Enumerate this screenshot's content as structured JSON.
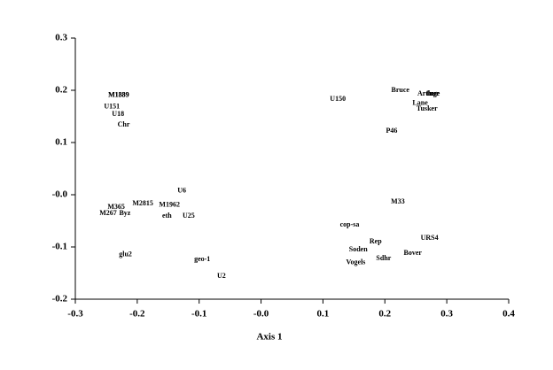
{
  "chart_data": {
    "type": "scatter",
    "x_label": "Axis 1",
    "xlim": [
      -0.3,
      0.4
    ],
    "ylim": [
      -0.2,
      0.3
    ],
    "xticks": [
      -0.3,
      -0.2,
      -0.1,
      {
        "value": 0,
        "label": "-0.0"
      },
      0.1,
      0.2,
      0.3,
      0.4
    ],
    "yticks": [
      -0.2,
      -0.1,
      {
        "value": 0,
        "label": "-0.0"
      },
      0.1,
      0.2,
      0.3
    ],
    "color": "#000000",
    "points": [
      {
        "label": "M1339",
        "x": -0.23,
        "y": 0.19
      },
      {
        "label": "M1889",
        "x": -0.23,
        "y": 0.19
      },
      {
        "label": "U151",
        "x": -0.241,
        "y": 0.168
      },
      {
        "label": "U18",
        "x": -0.231,
        "y": 0.154
      },
      {
        "label": "Chr",
        "x": -0.222,
        "y": 0.134
      },
      {
        "label": "U150",
        "x": 0.124,
        "y": 0.183
      },
      {
        "label": "Bruce",
        "x": 0.225,
        "y": 0.2
      },
      {
        "label": "Arthur",
        "x": 0.27,
        "y": 0.193
      },
      {
        "label": "Inge",
        "x": 0.278,
        "y": 0.193
      },
      {
        "label": "Lane",
        "x": 0.257,
        "y": 0.175
      },
      {
        "label": "Tusker",
        "x": 0.268,
        "y": 0.164
      },
      {
        "label": "P46",
        "x": 0.211,
        "y": 0.122
      },
      {
        "label": "U6",
        "x": -0.128,
        "y": 0.007
      },
      {
        "label": "M2815",
        "x": -0.191,
        "y": -0.017
      },
      {
        "label": "M1962",
        "x": -0.148,
        "y": -0.02
      },
      {
        "label": "M365",
        "x": -0.234,
        "y": -0.024
      },
      {
        "label": "M267",
        "x": -0.247,
        "y": -0.036
      },
      {
        "label": "Byz",
        "x": -0.22,
        "y": -0.036
      },
      {
        "label": "eth",
        "x": -0.152,
        "y": -0.041
      },
      {
        "label": "U25",
        "x": -0.117,
        "y": -0.041
      },
      {
        "label": "M33",
        "x": 0.221,
        "y": -0.014
      },
      {
        "label": "cop-sa",
        "x": 0.143,
        "y": -0.058
      },
      {
        "label": "URS4",
        "x": 0.272,
        "y": -0.083
      },
      {
        "label": "Rep",
        "x": 0.185,
        "y": -0.09
      },
      {
        "label": "Soden",
        "x": 0.157,
        "y": -0.105
      },
      {
        "label": "Bover",
        "x": 0.245,
        "y": -0.112
      },
      {
        "label": "Sdhr",
        "x": 0.198,
        "y": -0.122
      },
      {
        "label": "Vogels",
        "x": 0.153,
        "y": -0.13
      },
      {
        "label": "glu2",
        "x": -0.219,
        "y": -0.115
      },
      {
        "label": "geo-1",
        "x": -0.095,
        "y": -0.124
      },
      {
        "label": "U2",
        "x": -0.064,
        "y": -0.156
      }
    ]
  }
}
